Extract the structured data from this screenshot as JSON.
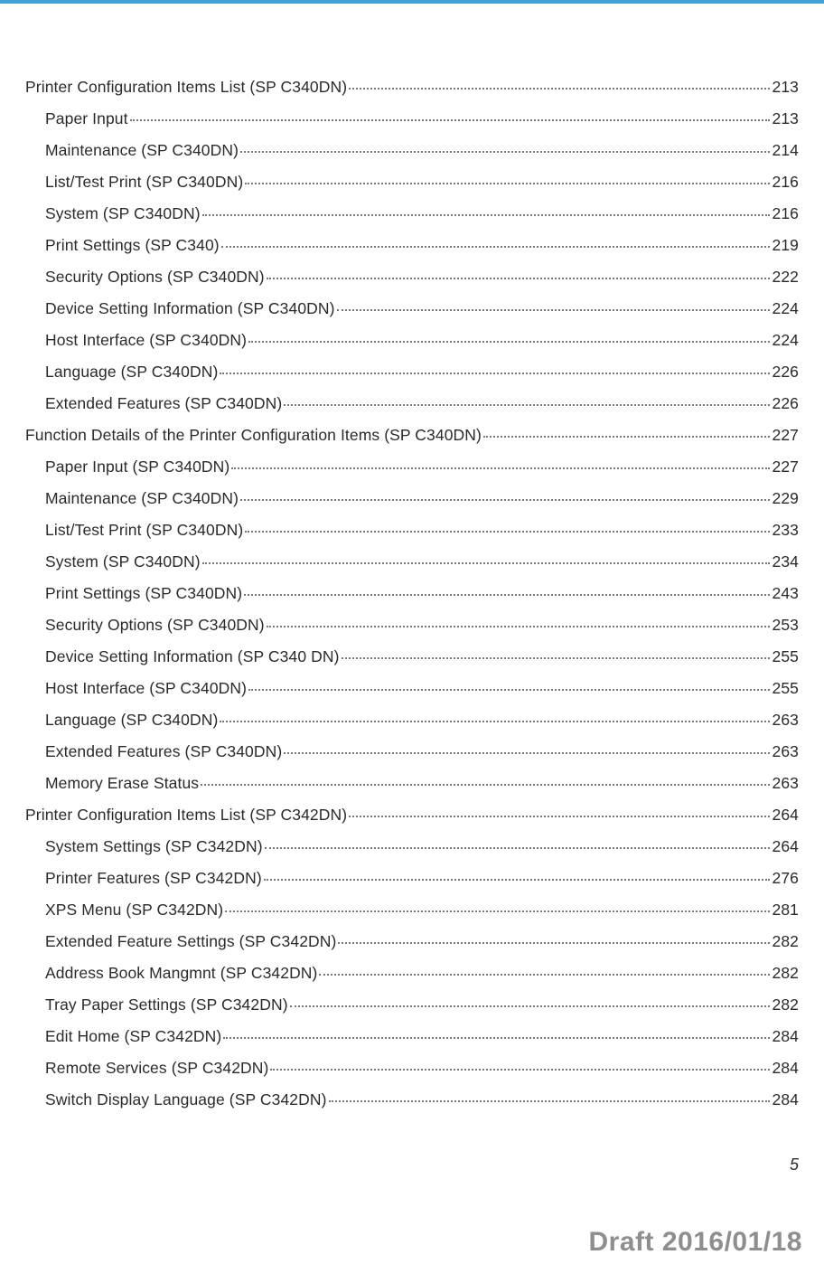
{
  "colors": {
    "top_bar": "#44a1d6",
    "text": "#2a2a2a",
    "leader": "#777777",
    "draft": "#8e8e8e",
    "background": "#ffffff"
  },
  "typography": {
    "body_fontsize": 17.5,
    "pagenum_fontsize": 18,
    "draft_fontsize": 30,
    "font_family": "Helvetica Neue"
  },
  "page_number": "5",
  "draft_label": "Draft 2016/01/18",
  "toc": [
    {
      "level": 1,
      "title": "Printer Configuration Items List (SP C340DN)",
      "page": "213"
    },
    {
      "level": 2,
      "title": "Paper Input",
      "page": "213"
    },
    {
      "level": 2,
      "title": "Maintenance (SP C340DN)",
      "page": "214"
    },
    {
      "level": 2,
      "title": "List/Test Print (SP C340DN)",
      "page": "216"
    },
    {
      "level": 2,
      "title": "System (SP C340DN)",
      "page": "216"
    },
    {
      "level": 2,
      "title": "Print Settings (SP C340)",
      "page": "219"
    },
    {
      "level": 2,
      "title": "Security Options (SP C340DN)",
      "page": "222"
    },
    {
      "level": 2,
      "title": "Device Setting Information (SP C340DN)",
      "page": "224"
    },
    {
      "level": 2,
      "title": "Host Interface (SP C340DN)",
      "page": "224"
    },
    {
      "level": 2,
      "title": "Language (SP C340DN)",
      "page": "226"
    },
    {
      "level": 2,
      "title": "Extended Features (SP C340DN)",
      "page": "226"
    },
    {
      "level": 1,
      "title": "Function Details of the Printer Configuration Items (SP C340DN)",
      "page": "227"
    },
    {
      "level": 2,
      "title": "Paper Input (SP C340DN)",
      "page": "227"
    },
    {
      "level": 2,
      "title": "Maintenance (SP C340DN)",
      "page": "229"
    },
    {
      "level": 2,
      "title": "List/Test Print (SP C340DN)",
      "page": "233"
    },
    {
      "level": 2,
      "title": "System (SP C340DN)",
      "page": "234"
    },
    {
      "level": 2,
      "title": "Print Settings (SP C340DN)",
      "page": "243"
    },
    {
      "level": 2,
      "title": "Security Options (SP C340DN)",
      "page": "253"
    },
    {
      "level": 2,
      "title": "Device Setting Information (SP C340 DN)",
      "page": "255"
    },
    {
      "level": 2,
      "title": "Host Interface (SP C340DN)",
      "page": "255"
    },
    {
      "level": 2,
      "title": "Language (SP C340DN)",
      "page": "263"
    },
    {
      "level": 2,
      "title": "Extended Features (SP C340DN)",
      "page": "263"
    },
    {
      "level": 2,
      "title": "Memory Erase Status",
      "page": "263"
    },
    {
      "level": 1,
      "title": "Printer Configuration Items List (SP C342DN)",
      "page": "264"
    },
    {
      "level": 2,
      "title": "System Settings (SP C342DN)",
      "page": "264"
    },
    {
      "level": 2,
      "title": "Printer Features (SP C342DN)",
      "page": "276"
    },
    {
      "level": 2,
      "title": "XPS Menu (SP C342DN)",
      "page": "281"
    },
    {
      "level": 2,
      "title": "Extended Feature Settings (SP C342DN)",
      "page": "282"
    },
    {
      "level": 2,
      "title": "Address Book Mangmnt (SP C342DN)",
      "page": "282"
    },
    {
      "level": 2,
      "title": "Tray Paper Settings (SP C342DN)",
      "page": "282"
    },
    {
      "level": 2,
      "title": "Edit Home (SP C342DN)",
      "page": "284"
    },
    {
      "level": 2,
      "title": "Remote Services (SP C342DN)",
      "page": "284"
    },
    {
      "level": 2,
      "title": "Switch Display Language (SP C342DN)",
      "page": "284"
    }
  ]
}
